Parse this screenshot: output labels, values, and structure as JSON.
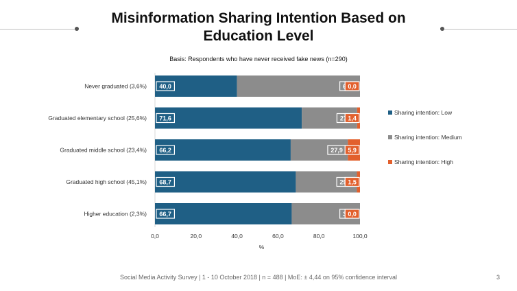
{
  "title": "Misinformation Sharing Intention Based on\nEducation Level",
  "subtitle": "Basis: Respondents who have never received fake news (n=290)",
  "footer": "Social Media Activity Survey | 1 - 10 October 2018 | n = 488 | MoE: ± 4,44 on 95% confidence interval",
  "page_number": "3",
  "colors": {
    "low": "#1f5f85",
    "medium": "#8c8c8c",
    "high": "#e2602d"
  },
  "chart_data": {
    "type": "bar",
    "orientation": "horizontal",
    "stacked": true,
    "categories": [
      "Never graduated (3,6%)",
      "Graduated elementary school (25,6%)",
      "Graduated middle school (23,4%)",
      "Graduated high school (45,1%)",
      "Higher education (2,3%)"
    ],
    "series": [
      {
        "name": "Sharing intention: Low",
        "values": [
          40.0,
          71.6,
          66.2,
          68.7,
          66.7
        ],
        "labels": [
          "40,0",
          "71,6",
          "66,2",
          "68,7",
          "66,7"
        ]
      },
      {
        "name": "Sharing intention: Medium",
        "values": [
          60.0,
          27.0,
          27.9,
          29.8,
          33.3
        ],
        "labels": [
          "60,0",
          "27,0",
          "27,9",
          "29,8",
          "33,3"
        ]
      },
      {
        "name": "Sharing intention: High",
        "values": [
          0.0,
          1.4,
          5.9,
          1.5,
          0.0
        ],
        "labels": [
          "0,0",
          "1,4",
          "5,9",
          "1,5",
          "0,0"
        ]
      }
    ],
    "xlim": [
      0,
      100
    ],
    "xticks": [
      "0,0",
      "20,0",
      "40,0",
      "60,0",
      "80,0",
      "100,0"
    ],
    "xlabel": "%",
    "legend_position": "right"
  }
}
